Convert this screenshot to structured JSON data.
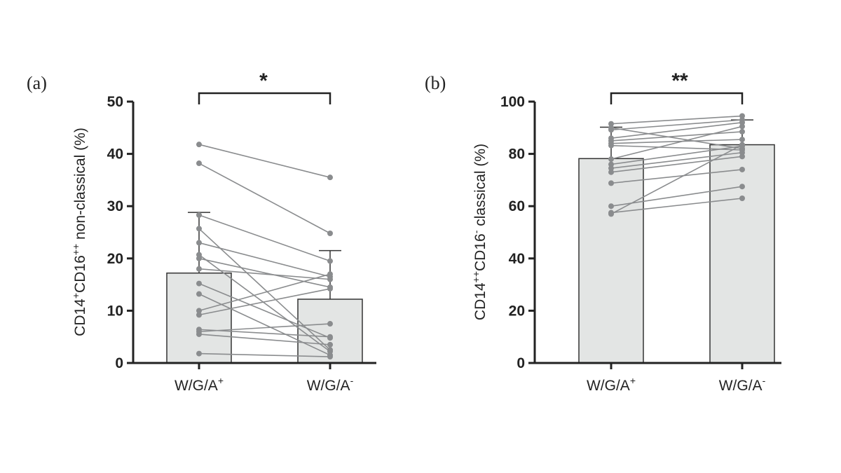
{
  "colors": {
    "bar_fill": "#e3e5e4",
    "bar_stroke": "#333333",
    "paired_points": "#8a8c8e",
    "axis": "#222222"
  },
  "chart_data": [
    {
      "panel": "(a)",
      "type": "bar",
      "categories": [
        "W/G/A",
        "W/G/A"
      ],
      "category_sup": [
        "+",
        "-"
      ],
      "ylabel": {
        "p1": "CD14",
        "s1": "+",
        "p2": "CD16",
        "s2": "++",
        "p3": " non-classical (%)"
      },
      "ylim": [
        0,
        50
      ],
      "yticks": [
        0,
        10,
        20,
        30,
        40,
        50
      ],
      "ytick_labels": [
        "0",
        "10",
        "20",
        "30",
        "40",
        "50"
      ],
      "means": [
        17.2,
        12.2
      ],
      "sd_upper": [
        28.8,
        21.5
      ],
      "significance": "*",
      "pairs": [
        [
          41.8,
          35.5
        ],
        [
          38.2,
          24.8
        ],
        [
          28.3,
          19.5
        ],
        [
          25.7,
          2.5
        ],
        [
          23.0,
          16.5
        ],
        [
          20.7,
          2.2
        ],
        [
          20.0,
          14.5
        ],
        [
          18.0,
          16.0
        ],
        [
          15.2,
          4.8
        ],
        [
          13.2,
          1.5
        ],
        [
          10.0,
          17.0
        ],
        [
          9.2,
          14.2
        ],
        [
          6.4,
          5.0
        ],
        [
          6.0,
          7.5
        ],
        [
          5.5,
          3.5
        ],
        [
          1.8,
          1.2
        ]
      ]
    },
    {
      "panel": "(b)",
      "type": "bar",
      "categories": [
        "W/G/A",
        "W/G/A"
      ],
      "category_sup": [
        "+",
        "-"
      ],
      "ylabel": {
        "p1": "CD14",
        "s1": "++",
        "p2": "CD16",
        "s2": "-",
        "p3": " classical (%)"
      },
      "ylim": [
        0,
        100
      ],
      "yticks": [
        0,
        20,
        40,
        60,
        80,
        100
      ],
      "ytick_labels": [
        "0",
        "20",
        "40",
        "60",
        "80",
        "100"
      ],
      "means": [
        78.2,
        83.5
      ],
      "sd_upper": [
        90.2,
        93.0
      ],
      "significance": "**",
      "pairs": [
        [
          91.5,
          94.5
        ],
        [
          90.0,
          82.0
        ],
        [
          89.2,
          93.0
        ],
        [
          86.0,
          92.0
        ],
        [
          85.0,
          88.5
        ],
        [
          84.0,
          85.5
        ],
        [
          83.2,
          81.5
        ],
        [
          78.0,
          90.5
        ],
        [
          76.0,
          83.0
        ],
        [
          74.5,
          80.5
        ],
        [
          73.0,
          79.0
        ],
        [
          68.8,
          74.0
        ],
        [
          60.0,
          67.5
        ],
        [
          57.5,
          63.0
        ],
        [
          57.0,
          83.5
        ]
      ]
    }
  ]
}
